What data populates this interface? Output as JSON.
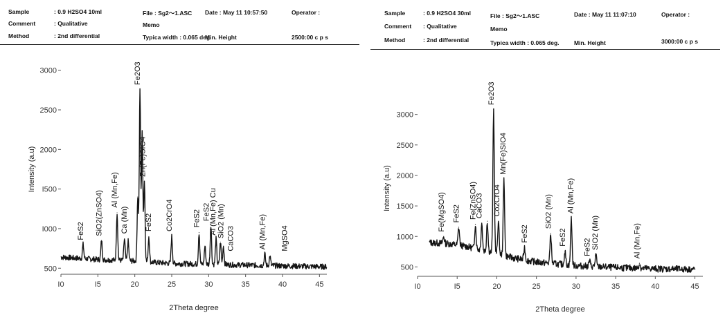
{
  "panels": [
    {
      "header": {
        "sample_key": "Sample",
        "sample_val": ": 0.9 H2SO4 10ml",
        "comment_key": "Comment",
        "comment_val": ": Qualitative",
        "method_key": "Method",
        "method_val": ": 2nd differential",
        "file": "File  :  Sg2～1.ASC",
        "memo": "Memo",
        "typica": "Typica width  :  0.065 deg.",
        "date": "Date  :  May 11    10:57:50",
        "minheight": "Min. Height",
        "operator": "Operator :",
        "cps": "2500:00 c p s"
      }
    },
    {
      "header": {
        "sample_key": "Sample",
        "sample_val": ": 0.9 H2SO4 30ml",
        "comment_key": "Comment",
        "comment_val": ": Qualitative",
        "method_key": "Method",
        "method_val": ": 2nd differential",
        "file": "File  :  Sg2～1.ASC",
        "memo": "Memo",
        "typica": "Typica width  :  0.065 deg.",
        "date": "Date  :  May 11    11:07:10",
        "minheight": "Min. Height",
        "operator": "Operator :",
        "cps": "3000:00 c p s"
      }
    }
  ],
  "chart_data": [
    {
      "type": "line",
      "xlabel": "2Theta degree",
      "ylabel": "Intensity (a.u)",
      "xlim": [
        10,
        46
      ],
      "ylim": [
        450,
        3050
      ],
      "x_ticks": [
        10,
        15,
        20,
        25,
        30,
        35,
        40,
        45
      ],
      "x_tick_labels": [
        "I0",
        "I5",
        "20",
        "25",
        "30",
        "35",
        "40",
        "45"
      ],
      "y_ticks": [
        500,
        1000,
        1500,
        2000,
        2500,
        3000
      ],
      "y_tick_labels": [
        "500",
        "I000",
        "I500",
        "2000",
        "2500",
        "3000"
      ],
      "baseline": [
        [
          10,
          640
        ],
        [
          15,
          610
        ],
        [
          18,
          600
        ],
        [
          20,
          590
        ],
        [
          25,
          560
        ],
        [
          30,
          550
        ],
        [
          35,
          540
        ],
        [
          40,
          530
        ],
        [
          45,
          520
        ],
        [
          46,
          520
        ]
      ],
      "peaks": [
        {
          "x": 13.0,
          "y": 800
        },
        {
          "x": 15.5,
          "y": 850
        },
        {
          "x": 17.6,
          "y": 1200
        },
        {
          "x": 18.6,
          "y": 870
        },
        {
          "x": 19.1,
          "y": 840
        },
        {
          "x": 20.4,
          "y": 1400
        },
        {
          "x": 20.7,
          "y": 2750
        },
        {
          "x": 21.0,
          "y": 2200
        },
        {
          "x": 21.3,
          "y": 1600
        },
        {
          "x": 21.9,
          "y": 900
        },
        {
          "x": 25.0,
          "y": 900
        },
        {
          "x": 28.7,
          "y": 950
        },
        {
          "x": 29.5,
          "y": 780
        },
        {
          "x": 30.3,
          "y": 1050
        },
        {
          "x": 31.0,
          "y": 870
        },
        {
          "x": 31.6,
          "y": 830
        },
        {
          "x": 32.0,
          "y": 780
        },
        {
          "x": 37.6,
          "y": 680
        },
        {
          "x": 38.3,
          "y": 650
        }
      ],
      "annotations": [
        {
          "text": "FeS2",
          "x": 13.0,
          "y": 820
        },
        {
          "text": "SiO2(ZnSO4)",
          "x": 15.5,
          "y": 870
        },
        {
          "text": "Al (Mn,Fe)",
          "x": 17.6,
          "y": 1230
        },
        {
          "text": "Ca (Mn)",
          "x": 18.9,
          "y": 900
        },
        {
          "text": "Fe2O3",
          "x": 20.7,
          "y": 2780
        },
        {
          "text": "Zn(Fe)SIO4",
          "x": 21.4,
          "y": 1620
        },
        {
          "text": "FeS2",
          "x": 22.2,
          "y": 930
        },
        {
          "text": "Co2CrO4",
          "x": 25.0,
          "y": 930
        },
        {
          "text": "FeS2",
          "x": 28.7,
          "y": 980
        },
        {
          "text": "FeS2",
          "x": 30.0,
          "y": 1060
        },
        {
          "text": "Al (Mn,Fe) Cu",
          "x": 30.9,
          "y": 880
        },
        {
          "text": "SiO2 (Mn)",
          "x": 32.0,
          "y": 840
        },
        {
          "text": "CaCO3",
          "x": 33.3,
          "y": 680
        },
        {
          "text": "Al (Mn,Fe)",
          "x": 37.6,
          "y": 700
        },
        {
          "text": "MgSO4",
          "x": 40.6,
          "y": 680
        }
      ]
    },
    {
      "type": "line",
      "xlabel": "2Theta degree",
      "ylabel": "Intensity (a.u)",
      "xlim": [
        10,
        46
      ],
      "ylim": [
        380,
        3200
      ],
      "x_ticks": [
        10,
        15,
        20,
        25,
        30,
        35,
        40,
        45
      ],
      "x_tick_labels": [
        "I0",
        "I5",
        "20",
        "25",
        "30",
        "35",
        "40",
        "45"
      ],
      "y_ticks": [
        500,
        1000,
        1500,
        2000,
        2500,
        3000
      ],
      "y_tick_labels": [
        "500",
        "1000",
        "1500",
        "2000",
        "2500",
        "3000"
      ],
      "baseline": [
        [
          11.5,
          900
        ],
        [
          14,
          880
        ],
        [
          16,
          840
        ],
        [
          18,
          780
        ],
        [
          20,
          720
        ],
        [
          22,
          650
        ],
        [
          25,
          580
        ],
        [
          30,
          520
        ],
        [
          35,
          490
        ],
        [
          40,
          470
        ],
        [
          45,
          460
        ]
      ],
      "peaks": [
        {
          "x": 13.3,
          "y": 1000
        },
        {
          "x": 15.2,
          "y": 1150
        },
        {
          "x": 17.3,
          "y": 1200
        },
        {
          "x": 18.1,
          "y": 1220
        },
        {
          "x": 18.8,
          "y": 1250
        },
        {
          "x": 19.6,
          "y": 3080
        },
        {
          "x": 20.2,
          "y": 1250
        },
        {
          "x": 20.9,
          "y": 1940
        },
        {
          "x": 23.5,
          "y": 820
        },
        {
          "x": 26.8,
          "y": 1050
        },
        {
          "x": 28.6,
          "y": 760
        },
        {
          "x": 29.4,
          "y": 1300
        },
        {
          "x": 31.7,
          "y": 600
        },
        {
          "x": 32.5,
          "y": 700
        },
        {
          "x": 38.0,
          "y": 560
        }
      ],
      "annotations": [
        {
          "text": "Fe(MgSO4)",
          "x": 13.3,
          "y": 1030
        },
        {
          "text": "FeS2",
          "x": 15.2,
          "y": 1180
        },
        {
          "text": "Fe(ZnSO4)",
          "x": 17.3,
          "y": 1230
        },
        {
          "text": "CaCO3",
          "x": 18.1,
          "y": 1250
        },
        {
          "text": "Fe2O3",
          "x": 19.6,
          "y": 3110
        },
        {
          "text": "Co2CrO4",
          "x": 20.3,
          "y": 1280
        },
        {
          "text": "Mn(Fe)SIO4",
          "x": 21.1,
          "y": 1970
        },
        {
          "text": "FeS2",
          "x": 23.8,
          "y": 850
        },
        {
          "text": "SiO2 (Mn)",
          "x": 26.8,
          "y": 1080
        },
        {
          "text": "FeS2",
          "x": 28.6,
          "y": 790
        },
        {
          "text": "Al (Mn,Fe)",
          "x": 29.6,
          "y": 1330
        },
        {
          "text": "FeS2",
          "x": 31.7,
          "y": 630
        },
        {
          "text": "SiO2 (Mn)",
          "x": 32.7,
          "y": 730
        },
        {
          "text": "Al (Mn,Fe)",
          "x": 38.0,
          "y": 590
        }
      ]
    }
  ]
}
